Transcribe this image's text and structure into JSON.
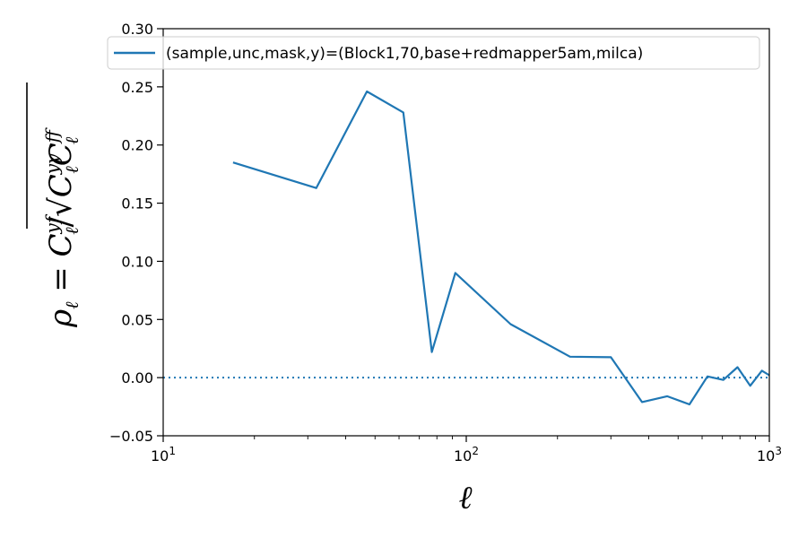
{
  "chart_data": {
    "type": "line",
    "title": "",
    "xlabel": "ℓ",
    "ylabel": {
      "rho": "ρ",
      "rho_sub": "ℓ",
      "eq": " = ",
      "c": "C",
      "yf_sup": "yf",
      "c_sub": "ℓ",
      "slash": "/",
      "sqrt": "√",
      "yy_sup": "yy",
      "ff_sup": "ff"
    },
    "x_scale": "log",
    "xlim": [
      10,
      1000
    ],
    "ylim": [
      -0.05,
      0.3
    ],
    "xticks": [
      {
        "value": 10,
        "base": "10",
        "exp": "1"
      },
      {
        "value": 100,
        "base": "10",
        "exp": "2"
      },
      {
        "value": 1000,
        "base": "10",
        "exp": "3"
      }
    ],
    "yticks": [
      {
        "value": -0.05,
        "label": "−0.05"
      },
      {
        "value": 0.0,
        "label": "0.00"
      },
      {
        "value": 0.05,
        "label": "0.05"
      },
      {
        "value": 0.1,
        "label": "0.10"
      },
      {
        "value": 0.15,
        "label": "0.15"
      },
      {
        "value": 0.2,
        "label": "0.20"
      },
      {
        "value": 0.25,
        "label": "0.25"
      },
      {
        "value": 0.3,
        "label": "0.30"
      }
    ],
    "reference_line": {
      "y": 0.0,
      "style": "dotted"
    },
    "legend": {
      "placement": "top"
    },
    "series": [
      {
        "name": "(sample,unc,mask,y)=(Block1,70,base+redmapper5am,milca)",
        "color": "#1f77b4",
        "x": [
          17,
          32,
          47,
          62,
          77,
          92,
          140,
          220,
          300,
          380,
          460,
          545,
          625,
          705,
          785,
          865,
          945,
          1000
        ],
        "y": [
          0.185,
          0.163,
          0.246,
          0.228,
          0.022,
          0.09,
          0.046,
          0.018,
          0.0175,
          -0.021,
          -0.016,
          -0.023,
          0.001,
          -0.002,
          0.009,
          -0.007,
          0.006,
          0.002
        ]
      }
    ]
  }
}
